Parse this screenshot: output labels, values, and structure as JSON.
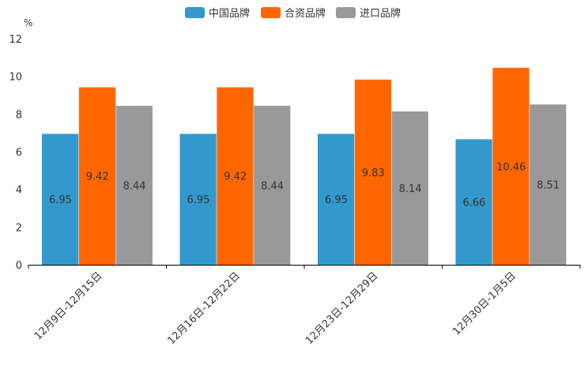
{
  "chart_data": {
    "type": "bar",
    "unit": "%",
    "ylim": [
      0,
      12
    ],
    "yticks": [
      0,
      2,
      4,
      6,
      8,
      10,
      12
    ],
    "categories": [
      "12月9日-12月15日",
      "12月16日-12月22日",
      "12月23日-12月29日",
      "12月30日-1月5日"
    ],
    "series": [
      {
        "name": "中国品牌",
        "color": "#3399CC",
        "values": [
          6.95,
          6.95,
          6.95,
          6.66
        ]
      },
      {
        "name": "合资品牌",
        "color": "#FF6600",
        "values": [
          9.42,
          9.42,
          9.83,
          10.46
        ]
      },
      {
        "name": "进口品牌",
        "color": "#999999",
        "values": [
          8.44,
          8.44,
          8.14,
          8.51
        ]
      }
    ],
    "legend_position": "top-center"
  }
}
